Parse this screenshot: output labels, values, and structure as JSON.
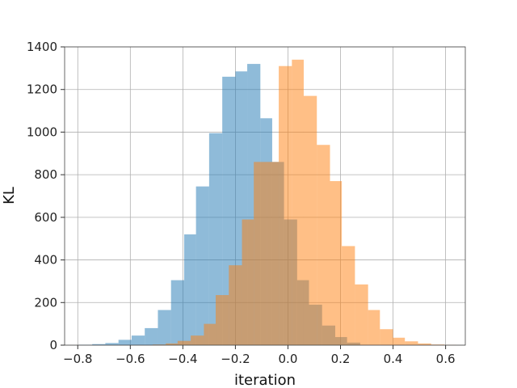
{
  "chart_data": {
    "type": "bar",
    "subtype": "overlapping-histogram",
    "title": "",
    "xlabel": "iteration",
    "ylabel": "KL",
    "xlim": [
      -0.85,
      0.675
    ],
    "ylim": [
      0,
      1400
    ],
    "xticks": [
      -0.8,
      -0.6,
      -0.4,
      -0.2,
      0.0,
      0.2,
      0.4,
      0.6
    ],
    "xtick_labels": [
      "−0.8",
      "−0.6",
      "−0.4",
      "−0.2",
      "0.0",
      "0.2",
      "0.4",
      "0.6"
    ],
    "yticks": [
      0,
      200,
      400,
      600,
      800,
      1000,
      1200,
      1400
    ],
    "ytick_labels": [
      "0",
      "200",
      "400",
      "600",
      "800",
      "1000",
      "1200",
      "1400"
    ],
    "grid": true,
    "legend": "none",
    "series": [
      {
        "color": "#1f77b4",
        "alpha": 0.5,
        "bins": [
          [
            -0.795,
            -0.745,
            2
          ],
          [
            -0.745,
            -0.695,
            5
          ],
          [
            -0.695,
            -0.645,
            10
          ],
          [
            -0.645,
            -0.595,
            25
          ],
          [
            -0.595,
            -0.545,
            45
          ],
          [
            -0.545,
            -0.495,
            80
          ],
          [
            -0.495,
            -0.445,
            165
          ],
          [
            -0.445,
            -0.395,
            305
          ],
          [
            -0.395,
            -0.35,
            520
          ],
          [
            -0.35,
            -0.3,
            745
          ],
          [
            -0.3,
            -0.25,
            995
          ],
          [
            -0.25,
            -0.2,
            1260
          ],
          [
            -0.2,
            -0.155,
            1285
          ],
          [
            -0.155,
            -0.105,
            1320
          ],
          [
            -0.105,
            -0.06,
            1065
          ],
          [
            -0.06,
            -0.015,
            860
          ],
          [
            -0.015,
            0.035,
            590
          ],
          [
            0.035,
            0.08,
            305
          ],
          [
            0.08,
            0.13,
            190
          ],
          [
            0.13,
            0.18,
            92
          ],
          [
            0.18,
            0.225,
            38
          ],
          [
            0.225,
            0.275,
            12
          ]
        ]
      },
      {
        "color": "#ff7f0e",
        "alpha": 0.5,
        "bins": [
          [
            -0.515,
            -0.465,
            3
          ],
          [
            -0.465,
            -0.42,
            8
          ],
          [
            -0.42,
            -0.37,
            20
          ],
          [
            -0.37,
            -0.32,
            45
          ],
          [
            -0.32,
            -0.275,
            100
          ],
          [
            -0.275,
            -0.225,
            235
          ],
          [
            -0.225,
            -0.175,
            375
          ],
          [
            -0.175,
            -0.13,
            590
          ],
          [
            -0.13,
            -0.08,
            860
          ],
          [
            -0.08,
            -0.035,
            860
          ],
          [
            -0.035,
            0.015,
            1310
          ],
          [
            0.015,
            0.06,
            1340
          ],
          [
            0.06,
            0.11,
            1170
          ],
          [
            0.11,
            0.16,
            940
          ],
          [
            0.16,
            0.205,
            770
          ],
          [
            0.205,
            0.255,
            465
          ],
          [
            0.255,
            0.305,
            285
          ],
          [
            0.305,
            0.35,
            165
          ],
          [
            0.35,
            0.4,
            75
          ],
          [
            0.4,
            0.445,
            35
          ],
          [
            0.445,
            0.495,
            18
          ],
          [
            0.495,
            0.545,
            8
          ],
          [
            0.545,
            0.595,
            3
          ],
          [
            0.595,
            0.64,
            1
          ]
        ]
      }
    ]
  }
}
